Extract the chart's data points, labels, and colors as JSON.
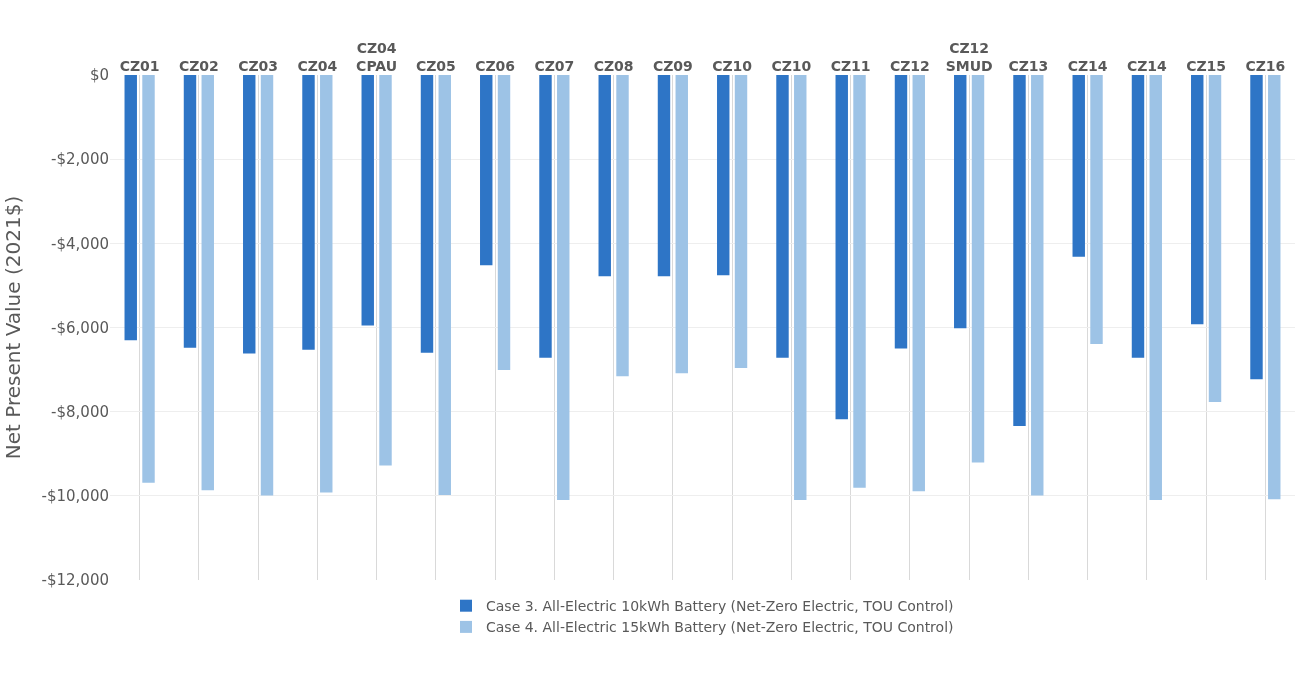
{
  "chart_data": {
    "type": "bar",
    "ylabel": "Net Present Value (2021$)",
    "categories": [
      "CZ01",
      "CZ02",
      "CZ03",
      "CZ04",
      "CZ04 CPAU",
      "CZ05",
      "CZ06",
      "CZ07",
      "CZ08",
      "CZ09",
      "CZ10",
      "CZ10",
      "CZ11",
      "CZ12",
      "CZ12 SMUD",
      "CZ13",
      "CZ14",
      "CZ14",
      "CZ15",
      "CZ16"
    ],
    "series": [
      {
        "name": "Case 3. All-Electric 10kWh Battery (Net-Zero Electric, TOU Control)",
        "color": "#2e75c6",
        "values": [
          -6300,
          -6480,
          -6620,
          -6530,
          -5950,
          -6600,
          -4520,
          -6720,
          -4780,
          -4780,
          -4760,
          -6720,
          -8180,
          -6500,
          -6020,
          -8340,
          -4320,
          -6720,
          -5920,
          -7230
        ]
      },
      {
        "name": "Case 4. All-Electric 15kWh Battery (Net-Zero Electric, TOU Control)",
        "color": "#9dc3e6",
        "values": [
          -9690,
          -9870,
          -9990,
          -9920,
          -9280,
          -9980,
          -7010,
          -10100,
          -7160,
          -7090,
          -6960,
          -10100,
          -9810,
          -9890,
          -9210,
          -9990,
          -6390,
          -10100,
          -7770,
          -10080
        ]
      }
    ],
    "ylim": [
      -12000,
      0
    ],
    "yticks": [
      {
        "value": 0,
        "label": "$0"
      },
      {
        "value": -2000,
        "label": "-$2,000"
      },
      {
        "value": -4000,
        "label": "-$4,000"
      },
      {
        "value": -6000,
        "label": "-$6,000"
      },
      {
        "value": -8000,
        "label": "-$8,000"
      },
      {
        "value": -10000,
        "label": "-$10,000"
      },
      {
        "value": -12000,
        "label": "-$12,000"
      }
    ],
    "grid": true,
    "legend": "bottom"
  }
}
